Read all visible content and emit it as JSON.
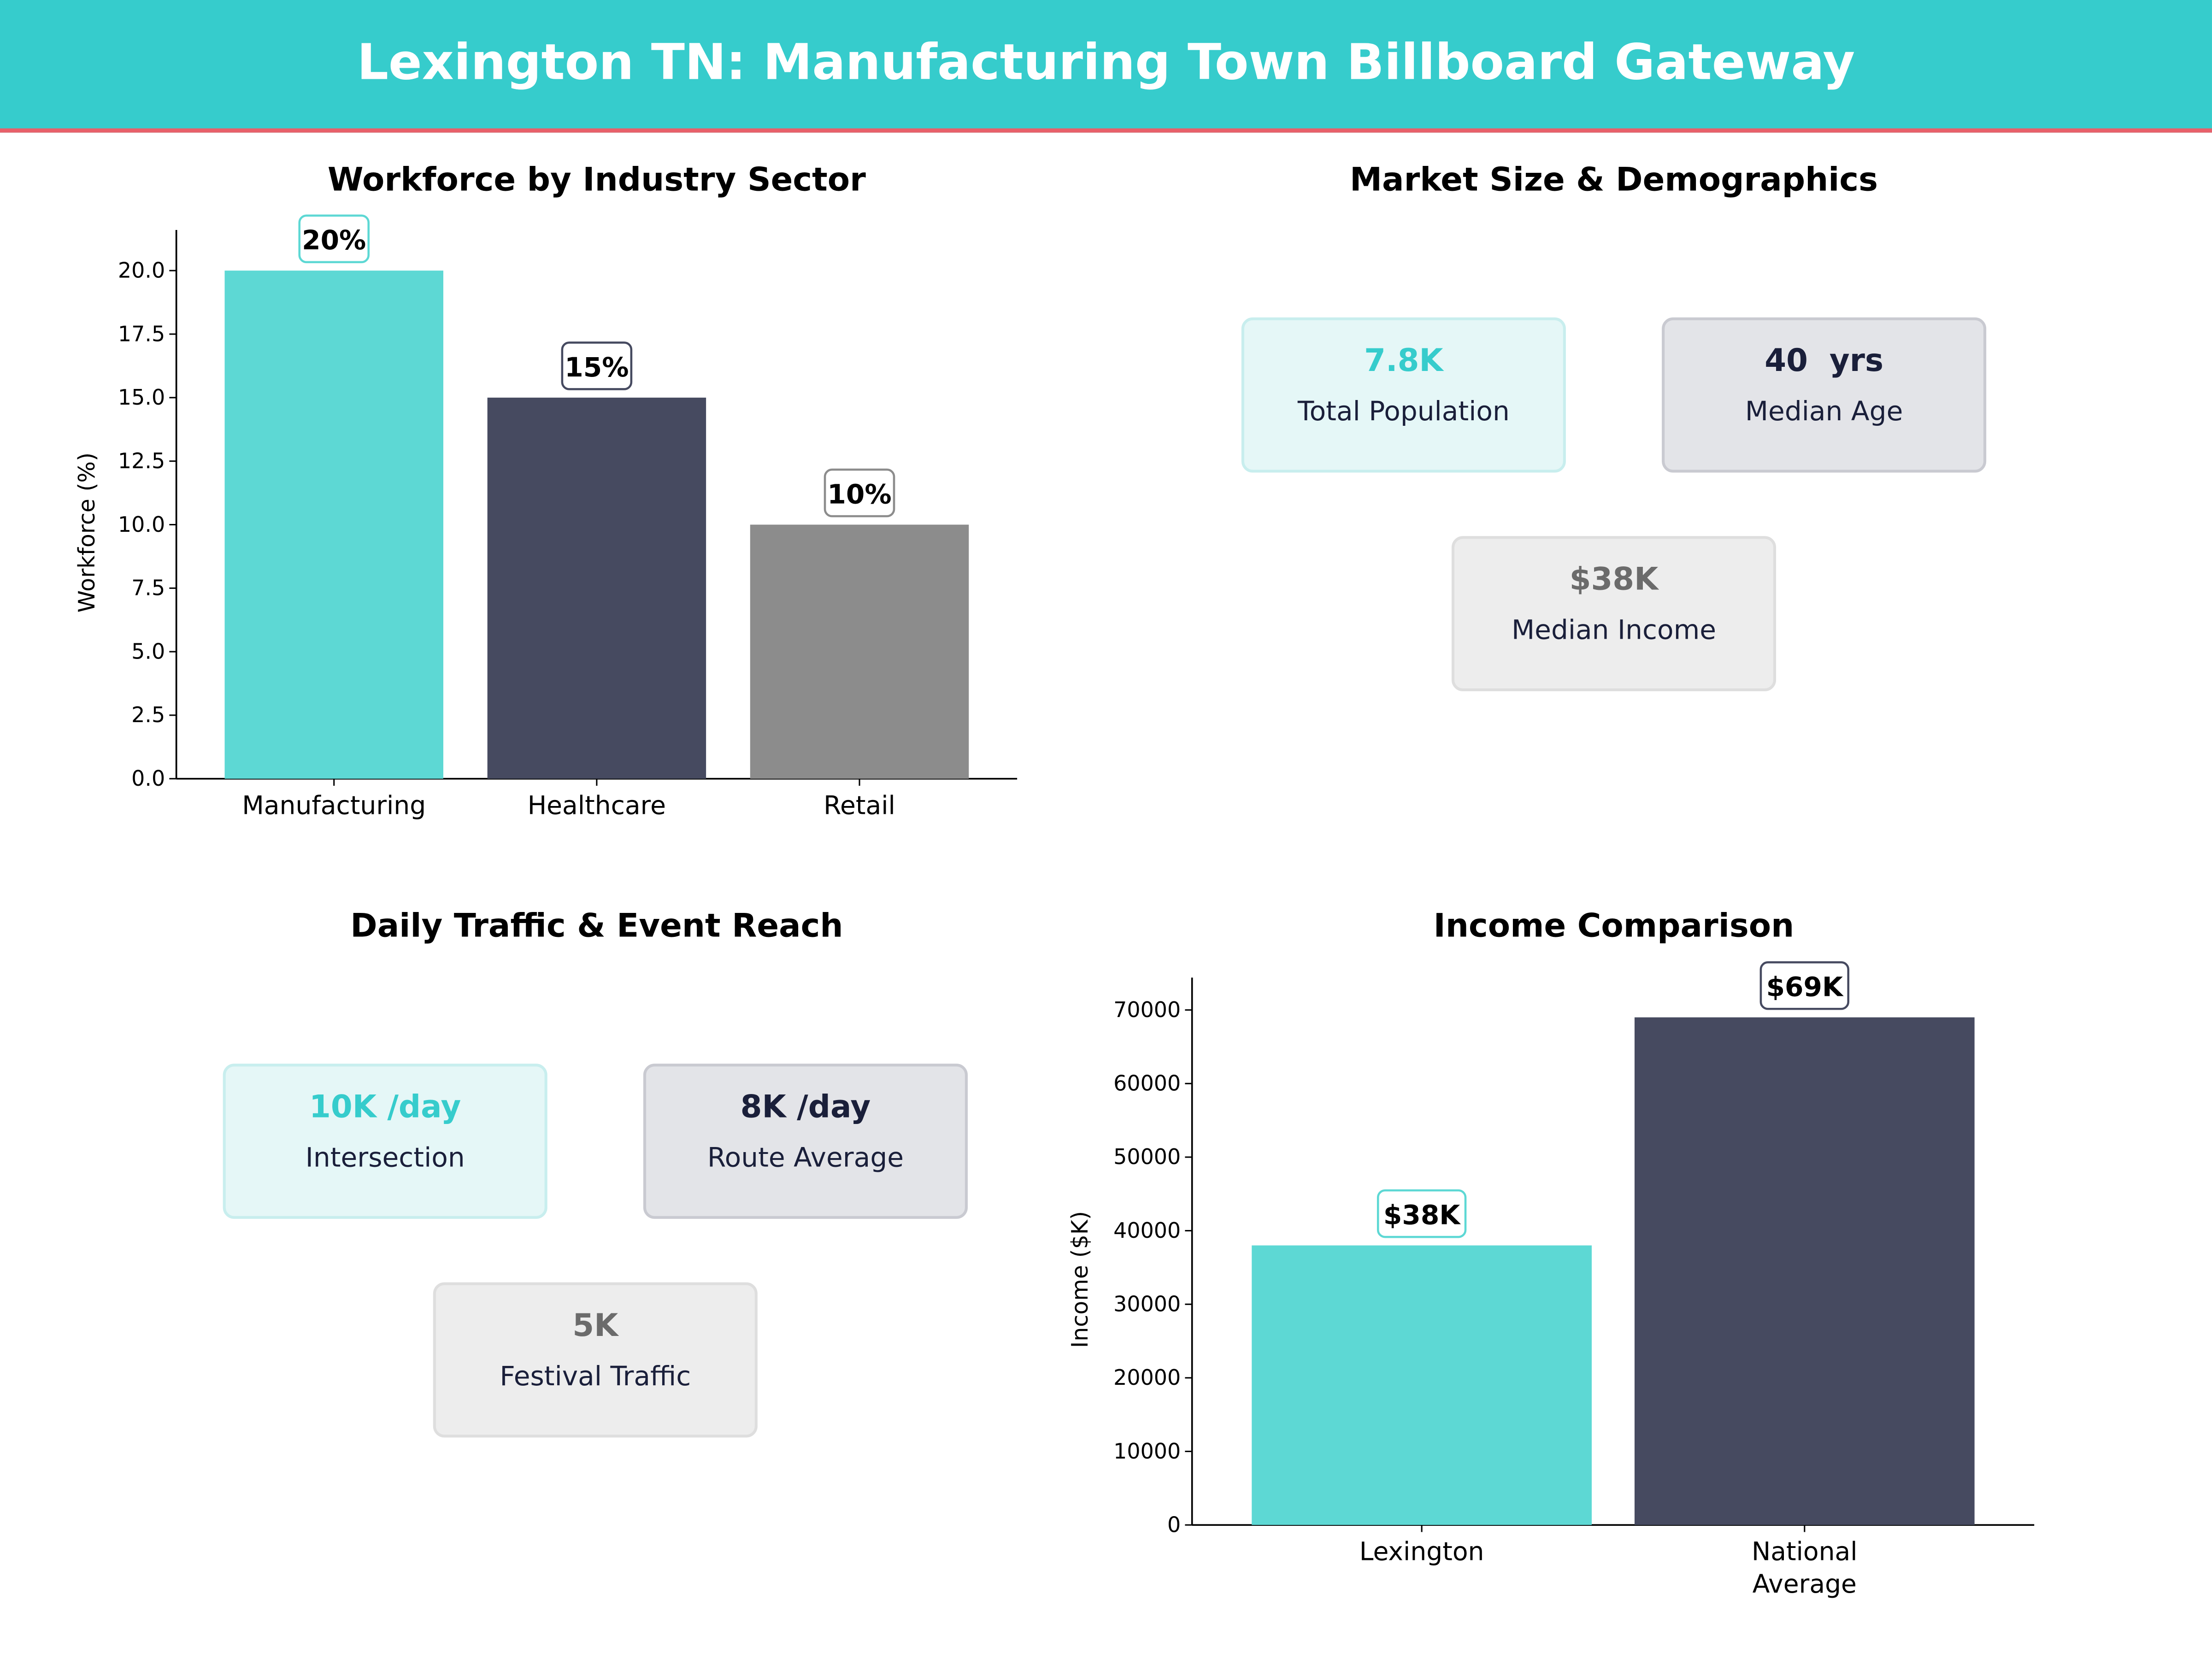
{
  "title": "Lexington TN: Manufacturing Town Billboard Gateway",
  "colors": {
    "header": "#36CCCC",
    "accent_line": "#E8606A",
    "teal": "#5DD8D4",
    "dark": "#464A60",
    "gray": "#8C8C8C"
  },
  "market": {
    "title": "Market Size & Demographics",
    "cards": [
      {
        "value": "7.8K",
        "label": "Total Population"
      },
      {
        "value": "40  yrs",
        "label": "Median Age"
      },
      {
        "value": "$38K",
        "label": "Median Income"
      }
    ]
  },
  "traffic": {
    "title": "Daily Traffic & Event Reach",
    "cards": [
      {
        "value": "10K /day",
        "label": "Intersection"
      },
      {
        "value": "8K /day",
        "label": "Route Average"
      },
      {
        "value": "5K",
        "label": "Festival Traffic"
      }
    ]
  },
  "chart_data": [
    {
      "type": "bar",
      "title": "Workforce by Industry Sector",
      "xlabel": "",
      "ylabel": "Workforce (%)",
      "categories": [
        "Manufacturing",
        "Healthcare",
        "Retail"
      ],
      "values": [
        20,
        15,
        10
      ],
      "data_labels": [
        "20%",
        "15%",
        "10%"
      ],
      "colors": [
        "#5DD8D4",
        "#464A60",
        "#8C8C8C"
      ],
      "ylim": [
        0,
        21.6
      ],
      "yticks": [
        0,
        2.5,
        5,
        7.5,
        10,
        12.5,
        15,
        17.5,
        20
      ],
      "ytick_labels": [
        "0.0",
        "2.5",
        "5.0",
        "7.5",
        "10.0",
        "12.5",
        "15.0",
        "17.5",
        "20.0"
      ],
      "grid": false
    },
    {
      "type": "bar",
      "title": "Income Comparison",
      "xlabel": "",
      "ylabel": "Income ($K)",
      "categories": [
        "Lexington",
        "National\nAverage"
      ],
      "values": [
        38000,
        69000
      ],
      "data_labels": [
        "$38K",
        "$69K"
      ],
      "colors": [
        "#5DD8D4",
        "#464A60"
      ],
      "ylim": [
        0,
        74400
      ],
      "yticks": [
        0,
        10000,
        20000,
        30000,
        40000,
        50000,
        60000,
        70000
      ],
      "ytick_labels": [
        "0",
        "10000",
        "20000",
        "30000",
        "40000",
        "50000",
        "60000",
        "70000"
      ],
      "grid": false
    }
  ]
}
